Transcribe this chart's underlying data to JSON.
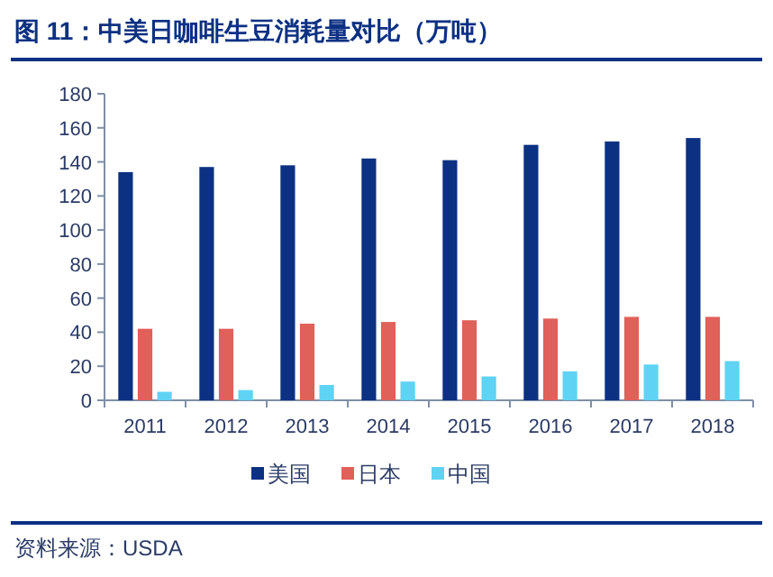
{
  "chart_data": {
    "type": "bar",
    "title": "图 11：中美日咖啡生豆消耗量对比（万吨）",
    "categories": [
      "2011",
      "2012",
      "2013",
      "2014",
      "2015",
      "2016",
      "2017",
      "2018"
    ],
    "series": [
      {
        "name": "美国",
        "color": "#0c3183",
        "values": [
          134,
          137,
          138,
          142,
          141,
          150,
          152,
          154
        ]
      },
      {
        "name": "日本",
        "color": "#e0605a",
        "values": [
          42,
          42,
          45,
          46,
          47,
          48,
          49,
          49
        ]
      },
      {
        "name": "中国",
        "color": "#5fd3f3",
        "values": [
          5,
          6,
          9,
          11,
          14,
          17,
          21,
          23
        ]
      }
    ],
    "ylim": [
      0,
      180
    ],
    "yticks": [
      0,
      20,
      40,
      60,
      80,
      100,
      120,
      140,
      160,
      180
    ],
    "grid": false,
    "legend": "bottom",
    "annotations": [
      "资料来源：USDA"
    ]
  }
}
